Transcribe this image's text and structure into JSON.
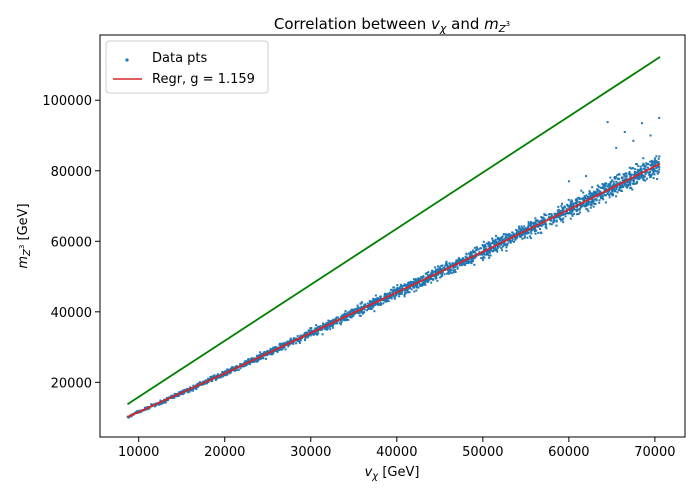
{
  "chart_data": {
    "type": "scatter",
    "title": {
      "prefix": "Correlation between ",
      "v": "v",
      "chi": "χ",
      "and": " and ",
      "m": "m",
      "Z": "Z",
      "cube": "3"
    },
    "xlabel": {
      "v": "v",
      "chi": "χ",
      "unit": " [GeV]"
    },
    "ylabel": {
      "m": "m",
      "Z": "Z",
      "cube": "3",
      "unit": " [GeV]"
    },
    "xlim": [
      5500,
      73500
    ],
    "ylim": [
      4500,
      118500
    ],
    "xticks": [
      10000,
      20000,
      30000,
      40000,
      50000,
      60000,
      70000
    ],
    "yticks": [
      20000,
      40000,
      60000,
      80000,
      100000
    ],
    "xtick_labels": [
      "10000",
      "20000",
      "30000",
      "40000",
      "50000",
      "60000",
      "70000"
    ],
    "ytick_labels": [
      "20000",
      "40000",
      "60000",
      "80000",
      "100000"
    ],
    "grid": false,
    "legend_position": "top-left",
    "series": [
      {
        "name": "Data pts",
        "kind": "scatter",
        "color": "#1f77b4",
        "x_range": [
          8700,
          70600
        ],
        "trend": [
          [
            8700,
            10200
          ],
          [
            20000,
            22500
          ],
          [
            30000,
            34000
          ],
          [
            40000,
            45500
          ],
          [
            50000,
            57000
          ],
          [
            60000,
            69000
          ],
          [
            70600,
            82000
          ]
        ],
        "spread": [
          [
            8700,
            600
          ],
          [
            30000,
            1800
          ],
          [
            50000,
            3000
          ],
          [
            70600,
            4500
          ]
        ],
        "max_y": 95000,
        "points": [
          [
            8800,
            10300
          ],
          [
            9500,
            11200
          ],
          [
            10200,
            12000
          ],
          [
            11000,
            12900
          ],
          [
            12000,
            14000
          ],
          [
            13000,
            15100
          ],
          [
            14000,
            16200
          ],
          [
            15000,
            17300
          ],
          [
            16000,
            18600
          ],
          [
            17000,
            19700
          ],
          [
            18000,
            20500
          ],
          [
            19000,
            21600
          ],
          [
            20000,
            22500
          ],
          [
            21000,
            23900
          ],
          [
            22000,
            24900
          ],
          [
            23000,
            26500
          ],
          [
            24000,
            27200
          ],
          [
            25000,
            28100
          ],
          [
            26000,
            29300
          ],
          [
            27000,
            31000
          ],
          [
            28000,
            32100
          ],
          [
            29000,
            32800
          ],
          [
            30000,
            34000
          ],
          [
            31000,
            35600
          ],
          [
            32000,
            36400
          ],
          [
            33000,
            37300
          ],
          [
            34000,
            39000
          ],
          [
            35000,
            40100
          ],
          [
            36000,
            40700
          ],
          [
            37000,
            42400
          ],
          [
            38000,
            43300
          ],
          [
            39000,
            44100
          ],
          [
            40000,
            45500
          ],
          [
            41000,
            47600
          ],
          [
            42000,
            48000
          ],
          [
            43000,
            48300
          ],
          [
            44000,
            50600
          ],
          [
            45000,
            52100
          ],
          [
            46000,
            52200
          ],
          [
            47000,
            53500
          ],
          [
            48000,
            55600
          ],
          [
            49000,
            55300
          ],
          [
            50000,
            57000
          ],
          [
            51000,
            59400
          ],
          [
            52000,
            59200
          ],
          [
            53000,
            60300
          ],
          [
            54000,
            63000
          ],
          [
            55000,
            63100
          ],
          [
            56000,
            63900
          ],
          [
            57000,
            66700
          ],
          [
            58000,
            66800
          ],
          [
            59000,
            67200
          ],
          [
            60000,
            69000
          ],
          [
            61000,
            72200
          ],
          [
            62000,
            70600
          ],
          [
            63000,
            72700
          ],
          [
            64000,
            75300
          ],
          [
            65000,
            74700
          ],
          [
            66000,
            75600
          ],
          [
            67000,
            79100
          ],
          [
            68000,
            78000
          ],
          [
            69000,
            80300
          ],
          [
            70000,
            83500
          ],
          [
            70500,
            81000
          ],
          [
            60000,
            77000
          ],
          [
            62000,
            78500
          ],
          [
            64500,
            93800
          ],
          [
            66500,
            91000
          ],
          [
            68500,
            93500
          ],
          [
            70500,
            95000
          ],
          [
            69500,
            90000
          ],
          [
            67500,
            88500
          ],
          [
            65500,
            86500
          ]
        ]
      },
      {
        "name": "Regr, g = 1.159",
        "kind": "line",
        "color": "#d62728",
        "points": [
          [
            8700,
            10200
          ],
          [
            20000,
            22500
          ],
          [
            30000,
            34000
          ],
          [
            40000,
            45500
          ],
          [
            50000,
            57000
          ],
          [
            60000,
            69000
          ],
          [
            70600,
            82000
          ]
        ]
      },
      {
        "name": "",
        "kind": "line",
        "color": "#008000",
        "points": [
          [
            8700,
            13800
          ],
          [
            70600,
            112300
          ]
        ]
      }
    ]
  }
}
